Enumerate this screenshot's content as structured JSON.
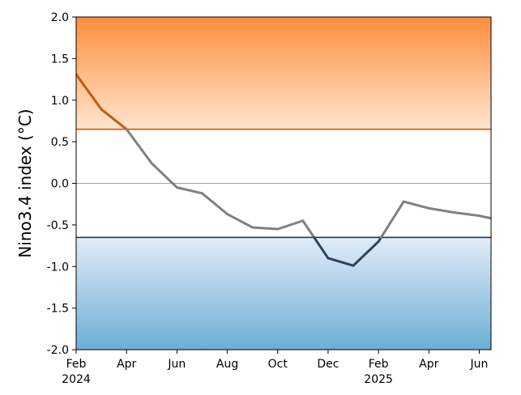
{
  "chart_data": {
    "type": "line",
    "ylabel": "Nino3.4 index (°C)",
    "ylim": [
      -2.0,
      2.0
    ],
    "xlim": [
      "2024-02",
      "2025-06-15"
    ],
    "y_ticks": [
      "-2.0",
      "-1.5",
      "-1.0",
      "-0.5",
      "0.0",
      "0.5",
      "1.0",
      "1.5",
      "2.0"
    ],
    "x_ticks": [
      {
        "date": "2024-02",
        "label": "Feb",
        "year": "2024"
      },
      {
        "date": "2024-04",
        "label": "Apr",
        "year": ""
      },
      {
        "date": "2024-06",
        "label": "Jun",
        "year": ""
      },
      {
        "date": "2024-08",
        "label": "Aug",
        "year": ""
      },
      {
        "date": "2024-10",
        "label": "Oct",
        "year": ""
      },
      {
        "date": "2024-12",
        "label": "Dec",
        "year": ""
      },
      {
        "date": "2025-02",
        "label": "Feb",
        "year": "2025"
      },
      {
        "date": "2025-04",
        "label": "Apr",
        "year": ""
      },
      {
        "date": "2025-06",
        "label": "Jun",
        "year": ""
      }
    ],
    "thresholds": {
      "el_nino": 0.65,
      "la_nina": -0.65
    },
    "zero_line": 0.0,
    "grid": false,
    "series": [
      {
        "x": [
          "2024-02",
          "2024-03",
          "2024-04",
          "2024-05",
          "2024-06",
          "2024-07",
          "2024-08",
          "2024-09",
          "2024-10",
          "2024-11",
          "2024-12",
          "2025-01",
          "2025-02",
          "2025-03",
          "2025-04",
          "2025-05",
          "2025-06",
          "2025-06-15"
        ],
        "y": [
          1.31,
          0.89,
          0.65,
          0.24,
          -0.05,
          -0.12,
          -0.37,
          -0.53,
          -0.55,
          -0.45,
          -0.9,
          -0.99,
          -0.7,
          -0.22,
          -0.3,
          -0.35,
          -0.39,
          -0.42
        ]
      }
    ],
    "colors": {
      "warm_line": "#c45a10",
      "neutral_line": "#808080",
      "cool_line": "#2a4458",
      "el_nino_threshold": "#c45a10",
      "la_nina_threshold": "#1f3a52",
      "zero_line": "#a0a0a0",
      "warm_fill_top": "#fd8d3c",
      "warm_fill_bottom": "#fee6ce",
      "cool_fill_top": "#e2ecf7",
      "cool_fill_bottom": "#6baed6"
    }
  }
}
